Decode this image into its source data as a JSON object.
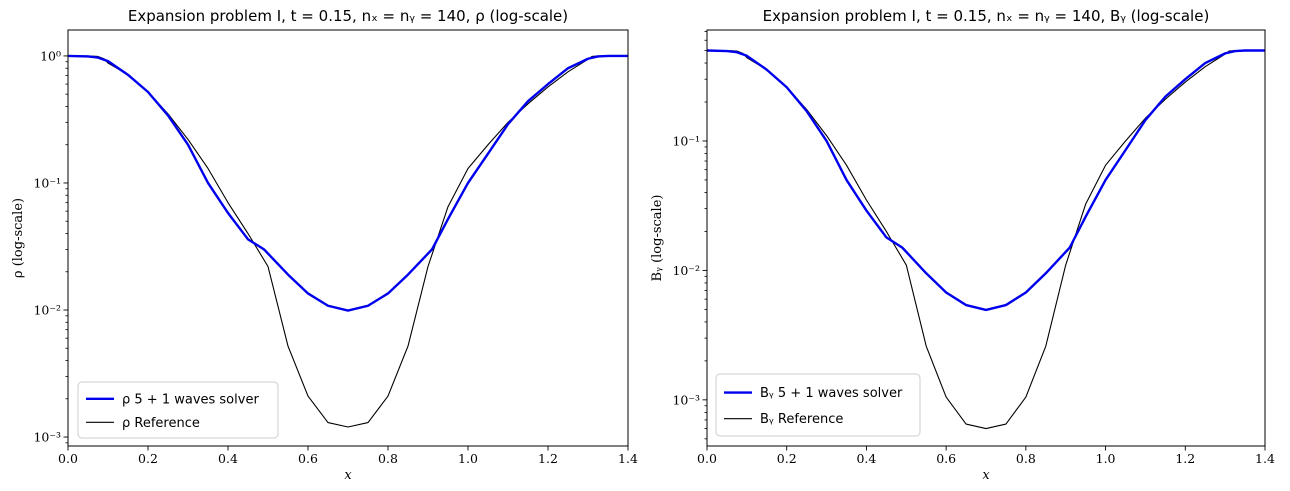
{
  "chart_data": [
    {
      "type": "line",
      "title": "Expansion problem I, t = 0.15, nₓ = nᵧ = 140, ρ (log-scale)",
      "xlabel": "x",
      "ylabel": "ρ (log-scale)",
      "xlim": [
        0.0,
        1.4
      ],
      "ylim": [
        0.00085,
        1.6
      ],
      "yscale": "log",
      "grid": false,
      "legend_position": "lower-left",
      "x_ticks": [
        0.0,
        0.2,
        0.4,
        0.6,
        0.8,
        1.0,
        1.2,
        1.4
      ],
      "x_tick_labels": [
        "0.0",
        "0.2",
        "0.4",
        "0.6",
        "0.8",
        "1.0",
        "1.2",
        "1.4"
      ],
      "y_ticks": [
        1,
        0.1,
        0.01,
        0.001
      ],
      "y_tick_labels": [
        "10⁰",
        "10⁻¹",
        "10⁻²",
        "10⁻³"
      ],
      "series": [
        {
          "name": "ρ 5 + 1 waves solver",
          "color": "#0000ee",
          "x": [
            0.0,
            0.05,
            0.075,
            0.1,
            0.15,
            0.2,
            0.25,
            0.3,
            0.35,
            0.4,
            0.45,
            0.49,
            0.55,
            0.6,
            0.65,
            0.7,
            0.75,
            0.8,
            0.85,
            0.91,
            0.95,
            1.0,
            1.05,
            1.1,
            1.15,
            1.2,
            1.25,
            1.3,
            1.325,
            1.35,
            1.4
          ],
          "y": [
            1.0,
            0.99,
            0.97,
            0.91,
            0.71,
            0.52,
            0.34,
            0.2,
            0.1,
            0.058,
            0.036,
            0.03,
            0.019,
            0.0135,
            0.0108,
            0.0099,
            0.0108,
            0.0135,
            0.019,
            0.03,
            0.052,
            0.1,
            0.17,
            0.29,
            0.44,
            0.6,
            0.8,
            0.95,
            0.99,
            1.0,
            1.0
          ]
        },
        {
          "name": "ρ Reference",
          "color": "#000000",
          "x": [
            0.0,
            0.05,
            0.075,
            0.09,
            0.1,
            0.15,
            0.2,
            0.25,
            0.3,
            0.35,
            0.4,
            0.45,
            0.5,
            0.55,
            0.6,
            0.65,
            0.7,
            0.75,
            0.8,
            0.85,
            0.9,
            0.95,
            1.0,
            1.05,
            1.1,
            1.15,
            1.2,
            1.25,
            1.3,
            1.31,
            1.325,
            1.35,
            1.4
          ],
          "y": [
            1.0,
            1.0,
            0.99,
            0.95,
            0.88,
            0.71,
            0.52,
            0.35,
            0.22,
            0.13,
            0.07,
            0.04,
            0.022,
            0.0052,
            0.0021,
            0.0013,
            0.0012,
            0.0013,
            0.0021,
            0.0052,
            0.022,
            0.065,
            0.13,
            0.2,
            0.3,
            0.42,
            0.57,
            0.75,
            0.94,
            0.99,
            1.0,
            1.0,
            1.0
          ]
        }
      ]
    },
    {
      "type": "line",
      "title": "Expansion problem I, t = 0.15, nₓ = nᵧ = 140, Bᵧ (log-scale)",
      "xlabel": "x",
      "ylabel": "Bᵧ (log-scale)",
      "xlim": [
        0.0,
        1.4
      ],
      "ylim": [
        0.00044,
        0.72
      ],
      "yscale": "log",
      "grid": false,
      "legend_position": "lower-left",
      "x_ticks": [
        0.0,
        0.2,
        0.4,
        0.6,
        0.8,
        1.0,
        1.2,
        1.4
      ],
      "x_tick_labels": [
        "0.0",
        "0.2",
        "0.4",
        "0.6",
        "0.8",
        "1.0",
        "1.2",
        "1.4"
      ],
      "y_ticks": [
        0.1,
        0.01,
        0.001
      ],
      "y_tick_labels": [
        "10⁻¹",
        "10⁻²",
        "10⁻³"
      ],
      "series": [
        {
          "name": "Bᵧ 5 + 1 waves solver",
          "color": "#0000ee",
          "x": [
            0.0,
            0.05,
            0.075,
            0.1,
            0.15,
            0.2,
            0.25,
            0.3,
            0.35,
            0.4,
            0.45,
            0.49,
            0.55,
            0.6,
            0.65,
            0.7,
            0.75,
            0.8,
            0.85,
            0.91,
            0.95,
            1.0,
            1.05,
            1.1,
            1.15,
            1.2,
            1.25,
            1.3,
            1.325,
            1.35,
            1.4
          ],
          "y": [
            0.5,
            0.495,
            0.485,
            0.455,
            0.355,
            0.26,
            0.17,
            0.1,
            0.05,
            0.029,
            0.018,
            0.015,
            0.0095,
            0.00675,
            0.0054,
            0.00495,
            0.0054,
            0.00675,
            0.0095,
            0.015,
            0.026,
            0.05,
            0.085,
            0.145,
            0.22,
            0.3,
            0.4,
            0.475,
            0.495,
            0.5,
            0.5
          ]
        },
        {
          "name": "Bᵧ Reference",
          "color": "#000000",
          "x": [
            0.0,
            0.05,
            0.075,
            0.09,
            0.1,
            0.15,
            0.2,
            0.25,
            0.3,
            0.35,
            0.4,
            0.45,
            0.5,
            0.55,
            0.6,
            0.65,
            0.7,
            0.75,
            0.8,
            0.85,
            0.9,
            0.95,
            1.0,
            1.05,
            1.1,
            1.15,
            1.2,
            1.25,
            1.3,
            1.31,
            1.325,
            1.35,
            1.4
          ],
          "y": [
            0.5,
            0.5,
            0.495,
            0.475,
            0.44,
            0.355,
            0.26,
            0.175,
            0.11,
            0.065,
            0.035,
            0.02,
            0.011,
            0.0026,
            0.00105,
            0.00065,
            0.0006,
            0.00065,
            0.00105,
            0.0026,
            0.011,
            0.0325,
            0.065,
            0.1,
            0.15,
            0.21,
            0.285,
            0.375,
            0.47,
            0.495,
            0.5,
            0.5,
            0.5
          ]
        }
      ]
    }
  ]
}
